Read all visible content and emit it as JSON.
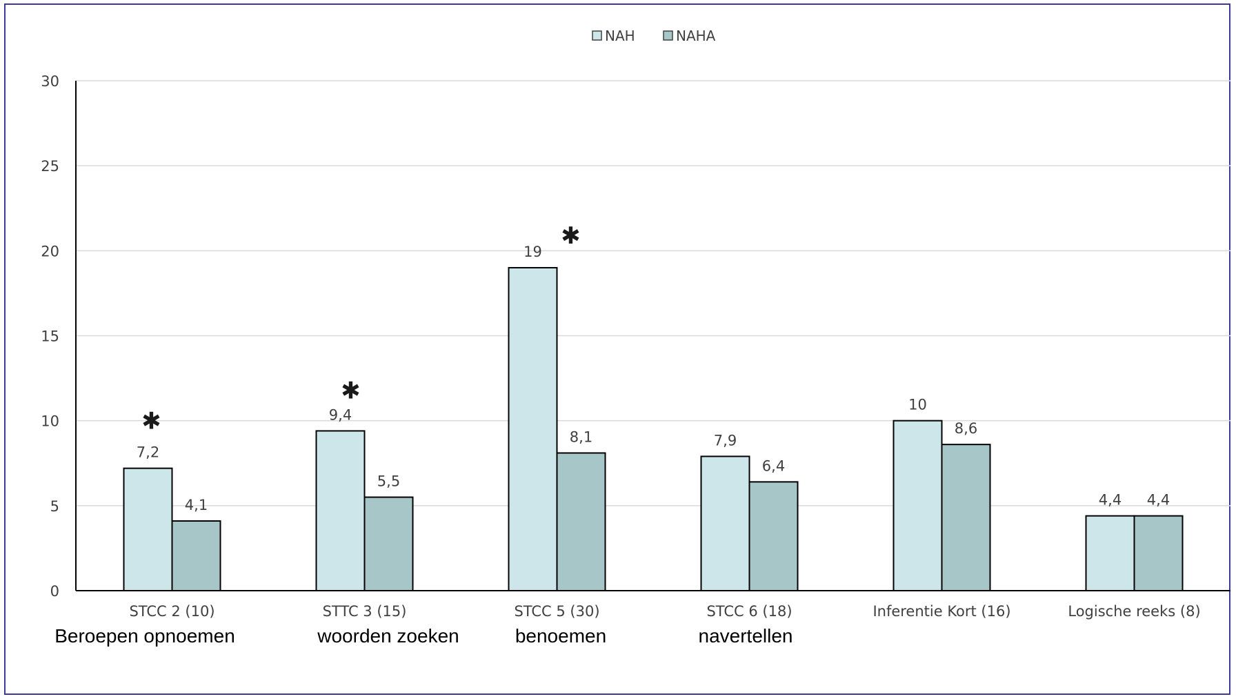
{
  "chart_data": {
    "type": "bar",
    "categories": [
      "STCC 2 (10)",
      "STTC 3 (15)",
      "STCC 5 (30)",
      "STCC 6 (18)",
      "Inferentie Kort (16)",
      "Logische reeks (8)"
    ],
    "sublabels": [
      "Beroepen opnoemen",
      "woorden zoeken",
      "benoemen",
      "navertellen",
      "",
      ""
    ],
    "series": [
      {
        "name": "NAH",
        "values": [
          7.2,
          9.4,
          19,
          7.9,
          10,
          4.4
        ],
        "labels": [
          "7,2",
          "9,4",
          "19",
          "7,9",
          "10",
          "4,4"
        ],
        "color": "#cde6ea"
      },
      {
        "name": "NAHA",
        "values": [
          4.1,
          5.5,
          8.1,
          6.4,
          8.6,
          4.4
        ],
        "labels": [
          "4,1",
          "5,5",
          "8,1",
          "6,4",
          "8,6",
          "4,4"
        ],
        "color": "#a6c6c8"
      }
    ],
    "significance_marks": [
      {
        "category_index": 0,
        "symbol": "✱",
        "y": 10
      },
      {
        "category_index": 1,
        "symbol": "✱",
        "y": 11.8
      },
      {
        "category_index": 2,
        "symbol": "✱",
        "y": 20.9
      }
    ],
    "yticks": [
      0,
      5,
      10,
      15,
      20,
      25,
      30
    ],
    "ylim": [
      0,
      30
    ],
    "title": "",
    "xlabel": "",
    "ylabel": "",
    "grid": true,
    "legend_position": "top-center",
    "colors": {
      "grid": "#d9d9d9",
      "axis": "#000000",
      "bar_stroke": "#000000",
      "frame": "#3b3a9a"
    }
  }
}
